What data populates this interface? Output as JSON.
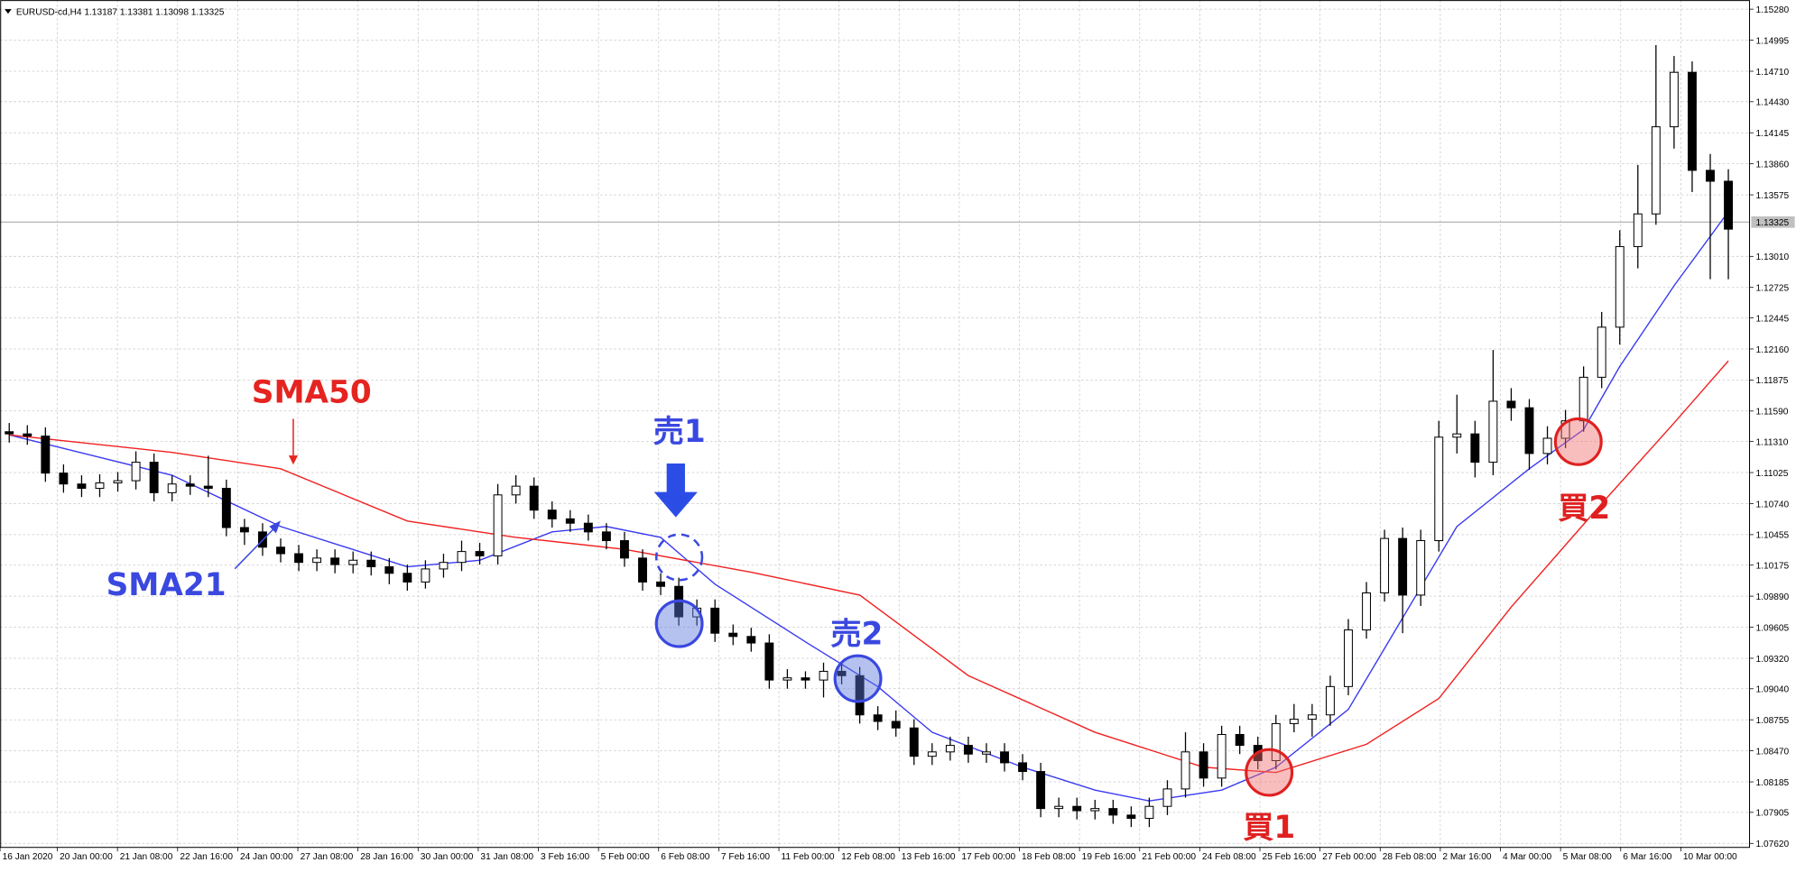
{
  "chart_data": {
    "type": "candlestick",
    "title": "EURUSD-cd,H4  1.13187 1.13381 1.13098 1.13325",
    "x_labels": [
      "16 Jan 2020",
      "20 Jan 00:00",
      "21 Jan 08:00",
      "22 Jan 16:00",
      "24 Jan 00:00",
      "27 Jan 08:00",
      "28 Jan 16:00",
      "30 Jan 00:00",
      "31 Jan 08:00",
      "3 Feb 16:00",
      "5 Feb 00:00",
      "6 Feb 08:00",
      "7 Feb 16:00",
      "11 Feb 00:00",
      "12 Feb 08:00",
      "13 Feb 16:00",
      "17 Feb 00:00",
      "18 Feb 08:00",
      "19 Feb 16:00",
      "21 Feb 00:00",
      "24 Feb 08:00",
      "25 Feb 16:00",
      "27 Feb 00:00",
      "28 Feb 08:00",
      "2 Mar 16:00",
      "4 Mar 00:00",
      "5 Mar 08:00",
      "6 Mar 16:00",
      "10 Mar 00:00"
    ],
    "open": [
      1.114,
      1.1138,
      1.1136,
      1.1102,
      1.1092,
      1.1088,
      1.1093,
      1.1095,
      1.1112,
      1.1084,
      1.1092,
      1.109,
      1.1088,
      1.1052,
      1.1048,
      1.1034,
      1.1028,
      1.102,
      1.1024,
      1.1018,
      1.1022,
      1.1016,
      1.101,
      1.1002,
      1.1014,
      1.102,
      1.103,
      1.1026,
      1.1082,
      1.109,
      1.1068,
      1.106,
      1.1056,
      1.1048,
      1.104,
      1.1024,
      1.1002,
      1.0998,
      1.097,
      1.0978,
      1.0955,
      1.0952,
      1.0946,
      1.0912,
      1.0914,
      1.0912,
      1.092,
      1.0916,
      1.088,
      1.0874,
      1.0868,
      1.0842,
      1.0846,
      1.0852,
      1.0844,
      1.0846,
      1.0836,
      1.0828,
      1.0794,
      1.0796,
      1.0792,
      1.0794,
      1.0788,
      1.0785,
      1.0796,
      1.0812,
      1.0846,
      1.0822,
      1.0862,
      1.0852,
      1.0838,
      1.0872,
      1.0876,
      1.088,
      1.0906,
      1.0958,
      1.0992,
      1.1042,
      1.099,
      1.104,
      1.1135,
      1.1138,
      1.1112,
      1.1168,
      1.1162,
      1.112,
      1.1134,
      1.115,
      1.119,
      1.1236,
      1.131,
      1.134,
      1.142,
      1.147,
      1.138,
      1.137
    ],
    "high": [
      1.1148,
      1.1146,
      1.1144,
      1.111,
      1.11,
      1.1101,
      1.1103,
      1.1122,
      1.112,
      1.11,
      1.11,
      1.1118,
      1.1096,
      1.106,
      1.1056,
      1.1042,
      1.1036,
      1.1032,
      1.1032,
      1.103,
      1.103,
      1.1024,
      1.1018,
      1.1022,
      1.1028,
      1.104,
      1.1038,
      1.1092,
      1.11,
      1.1098,
      1.1076,
      1.1068,
      1.1064,
      1.1056,
      1.1048,
      1.1032,
      1.101,
      1.1006,
      1.0986,
      1.0986,
      1.0963,
      1.096,
      1.0954,
      1.0922,
      1.092,
      1.0928,
      1.0928,
      1.0924,
      1.0888,
      1.0884,
      1.0876,
      1.0854,
      1.086,
      1.086,
      1.0854,
      1.0854,
      1.0844,
      1.0836,
      1.0804,
      1.0804,
      1.0802,
      1.0802,
      1.0796,
      1.0804,
      1.082,
      1.0864,
      1.0854,
      1.087,
      1.087,
      1.086,
      1.088,
      1.089,
      1.089,
      1.0916,
      1.0968,
      1.1002,
      1.105,
      1.1052,
      1.105,
      1.115,
      1.1174,
      1.115,
      1.1215,
      1.118,
      1.117,
      1.1145,
      1.116,
      1.12,
      1.125,
      1.1325,
      1.1385,
      1.1495,
      1.1485,
      1.148,
      1.1395,
      1.1381
    ],
    "low": [
      1.113,
      1.1128,
      1.1094,
      1.1084,
      1.108,
      1.108,
      1.1085,
      1.1087,
      1.1076,
      1.1076,
      1.1082,
      1.108,
      1.1044,
      1.1036,
      1.1026,
      1.102,
      1.1012,
      1.1012,
      1.101,
      1.101,
      1.1008,
      1.1,
      1.0994,
      1.0996,
      1.1006,
      1.1012,
      1.1018,
      1.1018,
      1.1074,
      1.106,
      1.1052,
      1.1048,
      1.104,
      1.1032,
      1.1016,
      1.0994,
      1.099,
      1.0962,
      1.0962,
      1.0947,
      1.0944,
      1.0938,
      1.0904,
      1.0904,
      1.0904,
      1.0896,
      1.0908,
      1.0872,
      1.0866,
      1.086,
      1.0834,
      1.0834,
      1.0838,
      1.0836,
      1.0836,
      1.0828,
      1.082,
      1.0786,
      1.0786,
      1.0784,
      1.0784,
      1.078,
      1.0777,
      1.0777,
      1.0788,
      1.0804,
      1.0814,
      1.0814,
      1.0844,
      1.083,
      1.083,
      1.0864,
      1.086,
      1.087,
      1.0898,
      1.095,
      1.0984,
      1.0955,
      1.098,
      1.103,
      1.112,
      1.1098,
      1.11,
      1.115,
      1.1105,
      1.111,
      1.1125,
      1.114,
      1.118,
      1.122,
      1.129,
      1.133,
      1.14,
      1.136,
      1.128,
      1.128
    ],
    "close": [
      1.1138,
      1.1136,
      1.1102,
      1.1092,
      1.1088,
      1.1093,
      1.1095,
      1.1112,
      1.1084,
      1.1092,
      1.109,
      1.1088,
      1.1052,
      1.1048,
      1.1034,
      1.1028,
      1.102,
      1.1024,
      1.1018,
      1.1022,
      1.1016,
      1.101,
      1.1002,
      1.1014,
      1.102,
      1.103,
      1.1026,
      1.1082,
      1.109,
      1.1068,
      1.106,
      1.1056,
      1.1048,
      1.104,
      1.1024,
      1.1002,
      1.0998,
      1.097,
      1.0978,
      1.0955,
      1.0952,
      1.0946,
      1.0912,
      1.0914,
      1.0912,
      1.092,
      1.0916,
      1.088,
      1.0874,
      1.0868,
      1.0842,
      1.0846,
      1.0852,
      1.0844,
      1.0846,
      1.0836,
      1.0828,
      1.0794,
      1.0796,
      1.0792,
      1.0794,
      1.0788,
      1.0785,
      1.0796,
      1.0812,
      1.0846,
      1.0822,
      1.0862,
      1.0852,
      1.0838,
      1.0872,
      1.0876,
      1.088,
      1.0906,
      1.0958,
      1.0992,
      1.1042,
      1.099,
      1.104,
      1.1135,
      1.1138,
      1.1112,
      1.1168,
      1.1162,
      1.112,
      1.1134,
      1.115,
      1.119,
      1.1236,
      1.131,
      1.134,
      1.142,
      1.147,
      1.138,
      1.137,
      1.1326
    ],
    "ylim": [
      1.0762,
      1.1528
    ],
    "yticks": [
      {
        "value": 1.1528,
        "label": "1.15280"
      },
      1.14995,
      {
        "value": 1.1471,
        "label": "1.14710"
      },
      {
        "value": 1.1443,
        "label": "1.14430"
      },
      1.14145,
      {
        "value": 1.1386,
        "label": "1.13860"
      },
      1.13575,
      {
        "value": 1.1301,
        "label": "1.13010"
      },
      1.12725,
      1.12445,
      {
        "value": 1.1216,
        "label": "1.12160"
      },
      1.11875,
      {
        "value": 1.1159,
        "label": "1.11590"
      },
      {
        "value": 1.1131,
        "label": "1.11310"
      },
      1.11025,
      {
        "value": 1.1074,
        "label": "1.10740"
      },
      1.10455,
      1.10175,
      {
        "value": 1.0989,
        "label": "1.09890"
      },
      1.09605,
      {
        "value": 1.0932,
        "label": "1.09320"
      },
      {
        "value": 1.0904,
        "label": "1.09040"
      },
      1.08755,
      {
        "value": 1.0847,
        "label": "1.08470"
      },
      1.08185,
      1.07905,
      {
        "value": 1.0762,
        "label": "1.07620"
      }
    ],
    "grid": true,
    "last_price": 1.13325,
    "series": [
      {
        "name": "SMA21",
        "color": "#3a3af0",
        "x": [
          0,
          9,
          15,
          22,
          26,
          30,
          33,
          36,
          39,
          44,
          48,
          51,
          56,
          60,
          63,
          67,
          70,
          74,
          77,
          80,
          84,
          87,
          89,
          92,
          95
        ],
        "values": [
          1.1137,
          1.11,
          1.1053,
          1.1016,
          1.1022,
          1.1048,
          1.1053,
          1.1043,
          1.1,
          1.0947,
          1.0906,
          1.0864,
          1.0832,
          1.0811,
          1.0801,
          1.0811,
          1.0832,
          1.0885,
          1.0969,
          1.1053,
          1.1106,
          1.1142,
          1.12,
          1.1274,
          1.1342
        ]
      },
      {
        "name": "SMA50",
        "color": "#f02020",
        "x": [
          0,
          9,
          15,
          22,
          28,
          34,
          41,
          47,
          53,
          60,
          66,
          70,
          75,
          79,
          83,
          88,
          92,
          95
        ],
        "values": [
          1.1137,
          1.1121,
          1.1106,
          1.1058,
          1.1043,
          1.1032,
          1.1011,
          1.099,
          1.0916,
          1.0864,
          1.0832,
          1.0827,
          1.0853,
          1.0895,
          1.0979,
          1.1074,
          1.1148,
          1.1205
        ]
      }
    ],
    "annotations": [
      {
        "text": "売1",
        "color": "#3a48e0"
      },
      {
        "text": "売2",
        "color": "#3a48e0"
      },
      {
        "text": "買1",
        "color": "#e02020"
      },
      {
        "text": "買2",
        "color": "#e02020"
      }
    ]
  }
}
